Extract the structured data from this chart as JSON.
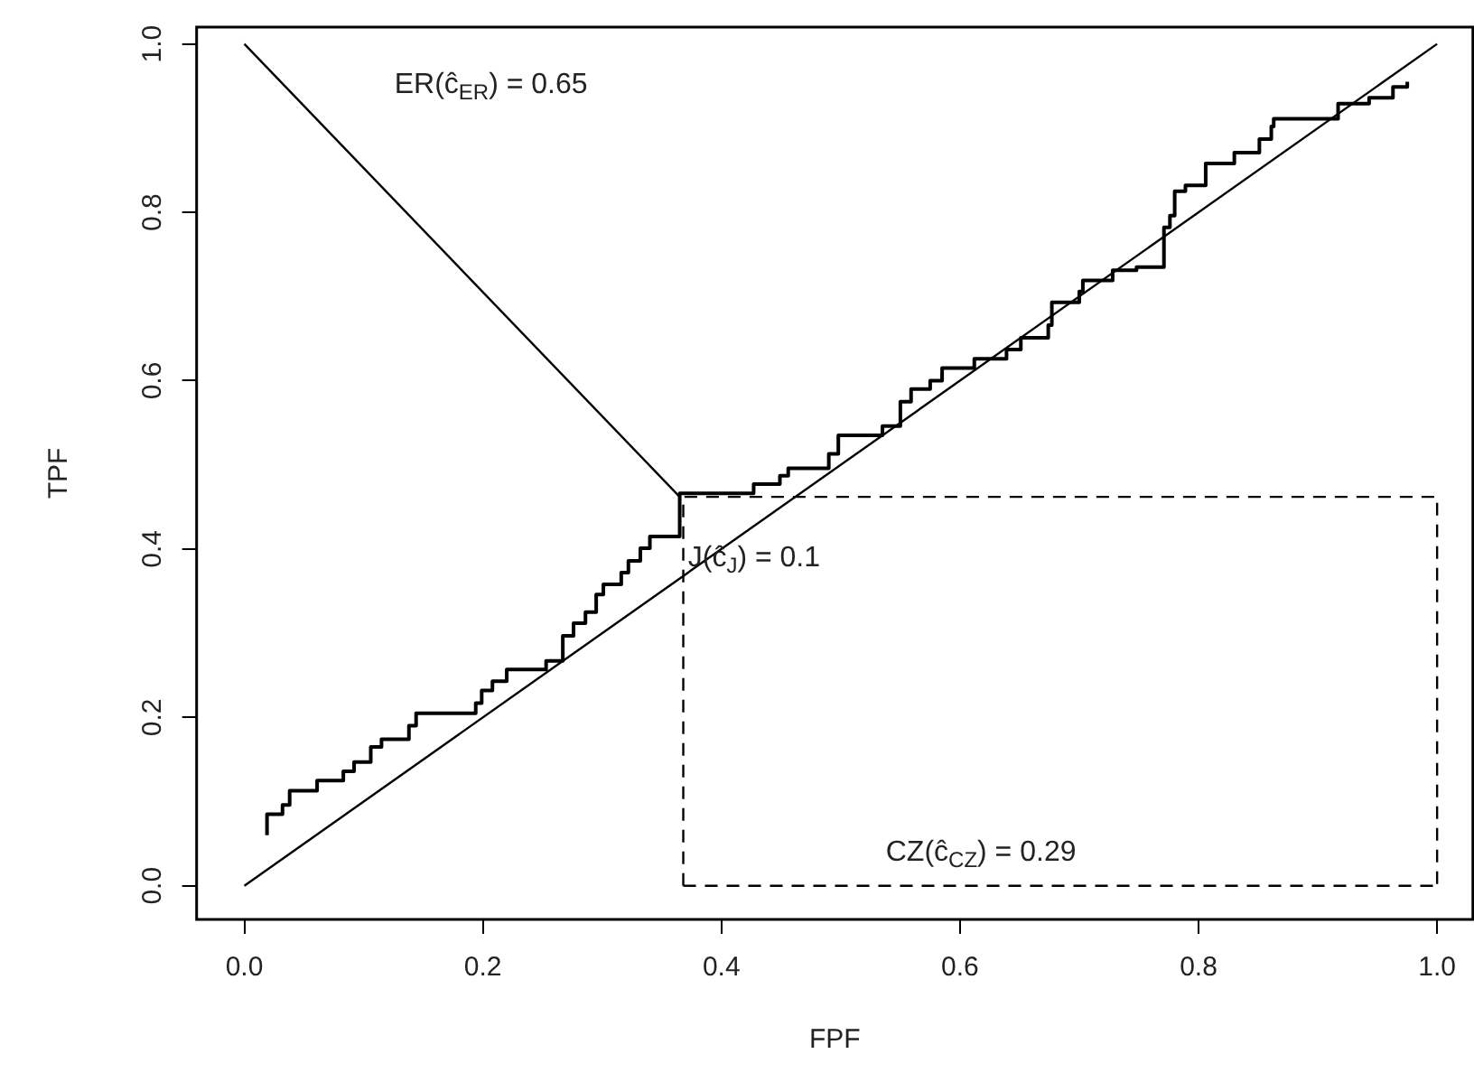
{
  "chart_data": {
    "type": "line",
    "xlabel": "FPF",
    "ylabel": "TPF",
    "xlim": [
      -0.04,
      1.03
    ],
    "ylim": [
      -0.04,
      1.02
    ],
    "xticks": [
      {
        "value": 0,
        "label": "0.0"
      },
      {
        "value": 0.2,
        "label": "0.2"
      },
      {
        "value": 0.4,
        "label": "0.4"
      },
      {
        "value": 0.6,
        "label": "0.6"
      },
      {
        "value": 0.8,
        "label": "0.8"
      },
      {
        "value": 1,
        "label": "1.0"
      }
    ],
    "yticks": [
      {
        "value": 0,
        "label": "0.0"
      },
      {
        "value": 0.2,
        "label": "0.2"
      },
      {
        "value": 0.4,
        "label": "0.4"
      },
      {
        "value": 0.6,
        "label": "0.6"
      },
      {
        "value": 0.8,
        "label": "0.8"
      },
      {
        "value": 1,
        "label": "1.0"
      }
    ],
    "grid": false,
    "legend": false,
    "marker": "none",
    "series": [
      {
        "color": "#000000",
        "x": [
          0,
          1
        ],
        "values": [
          0,
          1
        ]
      },
      {
        "color": "#000000",
        "x": [
          0,
          0.365
        ],
        "values": [
          1,
          0.462
        ]
      },
      {
        "color": "#000000",
        "line_style": "dashed",
        "x": [
          0.368,
          0.368,
          1,
          1
        ],
        "values": [
          0,
          0.462,
          0.462,
          0
        ]
      },
      {
        "color": "#000000",
        "line_style": "dashed",
        "x": [
          0.368,
          1
        ],
        "values": [
          0,
          0
        ]
      },
      {
        "type": "step",
        "color": "#000000",
        "x": [
          0.019,
          0.019,
          0.032,
          0.038,
          0.061,
          0.083,
          0.092,
          0.106,
          0.115,
          0.138,
          0.144,
          0.194,
          0.199,
          0.208,
          0.22,
          0.253,
          0.267,
          0.276,
          0.286,
          0.295,
          0.301,
          0.316,
          0.322,
          0.332,
          0.34,
          0.365,
          0.427,
          0.449,
          0.456,
          0.49,
          0.498,
          0.535,
          0.55,
          0.559,
          0.575,
          0.585,
          0.612,
          0.639,
          0.651,
          0.674,
          0.677,
          0.7,
          0.703,
          0.728,
          0.748,
          0.771,
          0.776,
          0.78,
          0.789,
          0.806,
          0.83,
          0.851,
          0.861,
          0.863,
          0.917,
          0.943,
          0.963,
          0.975
        ],
        "values": [
          0.06,
          0.085,
          0.096,
          0.113,
          0.125,
          0.136,
          0.147,
          0.165,
          0.174,
          0.19,
          0.205,
          0.217,
          0.232,
          0.243,
          0.257,
          0.267,
          0.297,
          0.312,
          0.325,
          0.346,
          0.358,
          0.372,
          0.386,
          0.401,
          0.415,
          0.466,
          0.477,
          0.487,
          0.496,
          0.513,
          0.535,
          0.546,
          0.575,
          0.59,
          0.6,
          0.615,
          0.626,
          0.637,
          0.651,
          0.666,
          0.693,
          0.706,
          0.719,
          0.731,
          0.735,
          0.782,
          0.796,
          0.825,
          0.832,
          0.858,
          0.871,
          0.887,
          0.902,
          0.911,
          0.929,
          0.936,
          0.949,
          0.955
        ]
      }
    ],
    "annotations": [
      "ER(ĉ$_{ER}$) = 0.65",
      "J(ĉ$_{J}$) = 0.1",
      "CZ(ĉ$_{CZ}$) = 0.29"
    ]
  }
}
